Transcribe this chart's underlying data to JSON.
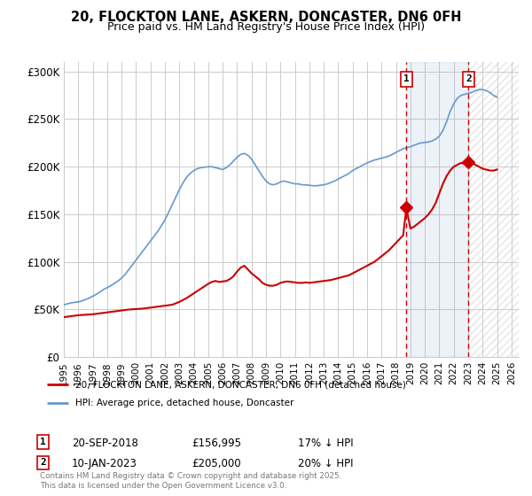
{
  "title1": "20, FLOCKTON LANE, ASKERN, DONCASTER, DN6 0FH",
  "title2": "Price paid vs. HM Land Registry's House Price Index (HPI)",
  "ylabel_ticks": [
    "£0",
    "£50K",
    "£100K",
    "£150K",
    "£200K",
    "£250K",
    "£300K"
  ],
  "ytick_values": [
    0,
    50000,
    100000,
    150000,
    200000,
    250000,
    300000
  ],
  "ylim": [
    0,
    310000
  ],
  "xlim_start": 1995.0,
  "xlim_end": 2026.5,
  "legend_line1": "20, FLOCKTON LANE, ASKERN, DONCASTER, DN6 0FH (detached house)",
  "legend_line2": "HPI: Average price, detached house, Doncaster",
  "marker1_label": "1",
  "marker1_date": "20-SEP-2018",
  "marker1_price": "£156,995",
  "marker1_hpi": "17% ↓ HPI",
  "marker1_x": 2018.72,
  "marker1_y": 156995,
  "marker2_label": "2",
  "marker2_date": "10-JAN-2023",
  "marker2_price": "£205,000",
  "marker2_hpi": "20% ↓ HPI",
  "marker2_x": 2023.03,
  "marker2_y": 205000,
  "line_color_property": "#cc0000",
  "line_color_hpi": "#6699cc",
  "background_color": "#ffffff",
  "grid_color": "#cccccc",
  "footer_text": "Contains HM Land Registry data © Crown copyright and database right 2025.\nThis data is licensed under the Open Government Licence v3.0.",
  "hpi_years": [
    1995.0,
    1995.25,
    1995.5,
    1995.75,
    1996.0,
    1996.25,
    1996.5,
    1996.75,
    1997.0,
    1997.25,
    1997.5,
    1997.75,
    1998.0,
    1998.25,
    1998.5,
    1998.75,
    1999.0,
    1999.25,
    1999.5,
    1999.75,
    2000.0,
    2000.25,
    2000.5,
    2000.75,
    2001.0,
    2001.25,
    2001.5,
    2001.75,
    2002.0,
    2002.25,
    2002.5,
    2002.75,
    2003.0,
    2003.25,
    2003.5,
    2003.75,
    2004.0,
    2004.25,
    2004.5,
    2004.75,
    2005.0,
    2005.25,
    2005.5,
    2005.75,
    2006.0,
    2006.25,
    2006.5,
    2006.75,
    2007.0,
    2007.25,
    2007.5,
    2007.75,
    2008.0,
    2008.25,
    2008.5,
    2008.75,
    2009.0,
    2009.25,
    2009.5,
    2009.75,
    2010.0,
    2010.25,
    2010.5,
    2010.75,
    2011.0,
    2011.25,
    2011.5,
    2011.75,
    2012.0,
    2012.25,
    2012.5,
    2012.75,
    2013.0,
    2013.25,
    2013.5,
    2013.75,
    2014.0,
    2014.25,
    2014.5,
    2014.75,
    2015.0,
    2015.25,
    2015.5,
    2015.75,
    2016.0,
    2016.25,
    2016.5,
    2016.75,
    2017.0,
    2017.25,
    2017.5,
    2017.75,
    2018.0,
    2018.25,
    2018.5,
    2018.75,
    2019.0,
    2019.25,
    2019.5,
    2019.75,
    2020.0,
    2020.25,
    2020.5,
    2020.75,
    2021.0,
    2021.25,
    2021.5,
    2021.75,
    2022.0,
    2022.25,
    2022.5,
    2022.75,
    2023.0,
    2023.25,
    2023.5,
    2023.75,
    2024.0,
    2024.25,
    2024.5,
    2024.75,
    2025.0
  ],
  "hpi_values": [
    55000,
    56000,
    57000,
    57500,
    58000,
    59000,
    60500,
    62000,
    64000,
    66000,
    68500,
    71000,
    73000,
    75000,
    77500,
    80000,
    83000,
    87000,
    92000,
    97000,
    102000,
    107000,
    112000,
    117000,
    122000,
    127000,
    132000,
    138000,
    144000,
    152000,
    160000,
    168000,
    176000,
    183000,
    189000,
    193000,
    196000,
    198000,
    199000,
    199500,
    200000,
    200000,
    199000,
    198000,
    197000,
    199000,
    202000,
    206000,
    210000,
    213000,
    214000,
    212000,
    208000,
    202000,
    196000,
    190000,
    185000,
    182000,
    181000,
    182000,
    184000,
    185000,
    184000,
    183000,
    182000,
    182000,
    181000,
    181000,
    180500,
    180000,
    180000,
    180500,
    181000,
    182000,
    183500,
    185000,
    187000,
    189000,
    191000,
    193000,
    196000,
    198000,
    200000,
    202000,
    204000,
    205500,
    207000,
    208000,
    209000,
    210000,
    211000,
    213000,
    215000,
    217000,
    219000,
    220000,
    221000,
    222500,
    224000,
    225000,
    225500,
    226000,
    227000,
    229000,
    232000,
    238000,
    247000,
    258000,
    266000,
    272000,
    275000,
    276000,
    277000,
    278000,
    280000,
    281000,
    281000,
    280000,
    278000,
    275000,
    273000
  ],
  "prop_years": [
    1995.0,
    1995.5,
    1996.0,
    1996.5,
    1997.0,
    1997.5,
    1998.0,
    1998.5,
    1999.0,
    1999.5,
    2000.0,
    2000.5,
    2001.0,
    2001.5,
    2002.0,
    2002.5,
    2003.0,
    2003.5,
    2004.0,
    2004.5,
    2005.0,
    2005.25,
    2005.5,
    2005.75,
    2006.0,
    2006.25,
    2006.5,
    2006.75,
    2007.0,
    2007.25,
    2007.5,
    2007.75,
    2008.0,
    2008.25,
    2008.5,
    2008.75,
    2009.0,
    2009.25,
    2009.5,
    2009.75,
    2010.0,
    2010.25,
    2010.5,
    2010.75,
    2011.0,
    2011.25,
    2011.5,
    2011.75,
    2012.0,
    2012.25,
    2012.5,
    2012.75,
    2013.0,
    2013.25,
    2013.5,
    2013.75,
    2014.0,
    2014.25,
    2014.5,
    2014.75,
    2015.0,
    2015.25,
    2015.5,
    2015.75,
    2016.0,
    2016.25,
    2016.5,
    2016.75,
    2017.0,
    2017.25,
    2017.5,
    2017.75,
    2018.0,
    2018.25,
    2018.5,
    2018.72,
    2019.0,
    2019.25,
    2019.5,
    2019.75,
    2020.0,
    2020.25,
    2020.5,
    2020.75,
    2021.0,
    2021.25,
    2021.5,
    2021.75,
    2022.0,
    2022.25,
    2022.5,
    2022.75,
    2023.03,
    2023.25,
    2023.5,
    2023.75,
    2024.0,
    2024.25,
    2024.5,
    2024.75,
    2025.0
  ],
  "prop_values": [
    42000,
    43000,
    44000,
    44500,
    45000,
    46000,
    47000,
    48000,
    49000,
    50000,
    50500,
    51000,
    52000,
    53000,
    54000,
    55000,
    58000,
    62000,
    67000,
    72000,
    77000,
    79000,
    80000,
    79000,
    79500,
    80000,
    82000,
    85000,
    90000,
    94000,
    96000,
    92000,
    88000,
    85000,
    82000,
    78000,
    76000,
    75000,
    75000,
    76000,
    78000,
    79000,
    79500,
    79000,
    78500,
    78000,
    78000,
    78500,
    78000,
    78500,
    79000,
    79500,
    80000,
    80500,
    81000,
    82000,
    83000,
    84000,
    85000,
    86000,
    88000,
    90000,
    92000,
    94000,
    96000,
    98000,
    100000,
    103000,
    106000,
    109000,
    112000,
    116000,
    120000,
    124000,
    128000,
    156995,
    135000,
    137000,
    140000,
    143000,
    146000,
    150000,
    155000,
    162000,
    172000,
    182000,
    190000,
    196000,
    200000,
    202000,
    204000,
    203000,
    205000,
    204000,
    202000,
    200000,
    198000,
    197000,
    196000,
    196000,
    197000
  ],
  "xtick_years": [
    1995,
    1996,
    1997,
    1998,
    1999,
    2000,
    2001,
    2002,
    2003,
    2004,
    2005,
    2006,
    2007,
    2008,
    2009,
    2010,
    2011,
    2012,
    2013,
    2014,
    2015,
    2016,
    2017,
    2018,
    2019,
    2020,
    2021,
    2022,
    2023,
    2024,
    2025,
    2026
  ]
}
